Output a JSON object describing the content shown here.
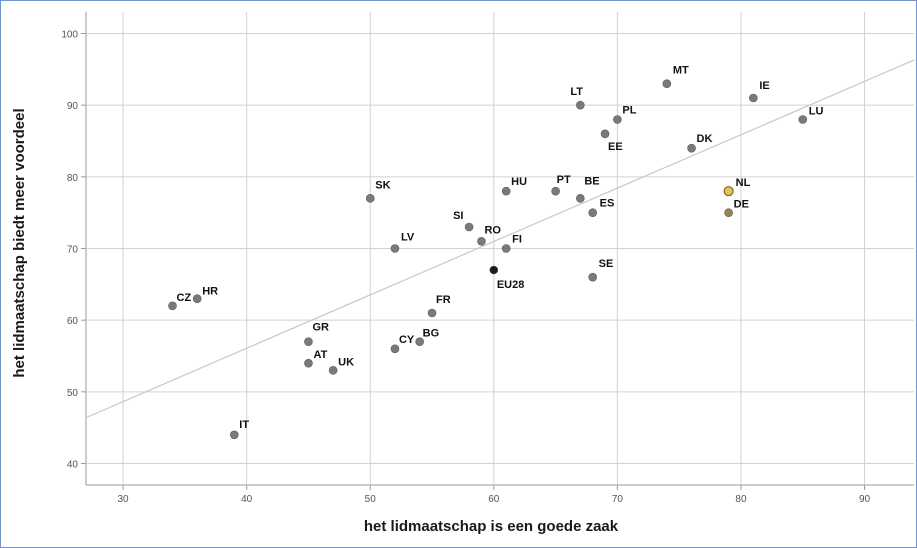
{
  "chart_data": {
    "type": "scatter",
    "xlabel": "het lidmaatschap is een goede zaak",
    "ylabel": "het lidmaatschap biedt meer voordeel",
    "xlim": [
      27,
      94
    ],
    "ylim": [
      37,
      103
    ],
    "x_ticks": [
      30,
      40,
      50,
      60,
      70,
      80,
      90
    ],
    "y_ticks": [
      40,
      50,
      60,
      70,
      80,
      90,
      100
    ],
    "grid": true,
    "fit_line": {
      "x": [
        27,
        94
      ],
      "y": [
        46.4,
        96.3
      ],
      "color": "#c8c8c8"
    },
    "marker_color": "#7a7a7a",
    "points": [
      {
        "label": "MT",
        "x": 74,
        "y": 93
      },
      {
        "label": "IE",
        "x": 81,
        "y": 91
      },
      {
        "label": "LU",
        "x": 85,
        "y": 88
      },
      {
        "label": "LT",
        "x": 67,
        "y": 90
      },
      {
        "label": "PL",
        "x": 70,
        "y": 88
      },
      {
        "label": "EE",
        "x": 69,
        "y": 86
      },
      {
        "label": "DK",
        "x": 76,
        "y": 84
      },
      {
        "label": "NL",
        "x": 79,
        "y": 78,
        "color": "#e3c25a",
        "ring": true
      },
      {
        "label": "DE",
        "x": 79,
        "y": 75,
        "color": "#9a8450"
      },
      {
        "label": "SK",
        "x": 50,
        "y": 77
      },
      {
        "label": "HU",
        "x": 61,
        "y": 78
      },
      {
        "label": "PT",
        "x": 65,
        "y": 78
      },
      {
        "label": "BE",
        "x": 67,
        "y": 77
      },
      {
        "label": "ES",
        "x": 68,
        "y": 75
      },
      {
        "label": "SI",
        "x": 58,
        "y": 73
      },
      {
        "label": "RO",
        "x": 59,
        "y": 71
      },
      {
        "label": "FI",
        "x": 61,
        "y": 70
      },
      {
        "label": "LV",
        "x": 52,
        "y": 70
      },
      {
        "label": "EU28",
        "x": 60,
        "y": 67,
        "color": "#1a1a1a"
      },
      {
        "label": "SE",
        "x": 68,
        "y": 66
      },
      {
        "label": "CZ",
        "x": 34,
        "y": 62
      },
      {
        "label": "HR",
        "x": 36,
        "y": 63
      },
      {
        "label": "FR",
        "x": 55,
        "y": 61
      },
      {
        "label": "GR",
        "x": 45,
        "y": 57
      },
      {
        "label": "AT",
        "x": 45,
        "y": 54
      },
      {
        "label": "UK",
        "x": 47,
        "y": 53
      },
      {
        "label": "CY",
        "x": 52,
        "y": 56
      },
      {
        "label": "BG",
        "x": 54,
        "y": 57
      },
      {
        "label": "IT",
        "x": 39,
        "y": 44
      }
    ]
  }
}
